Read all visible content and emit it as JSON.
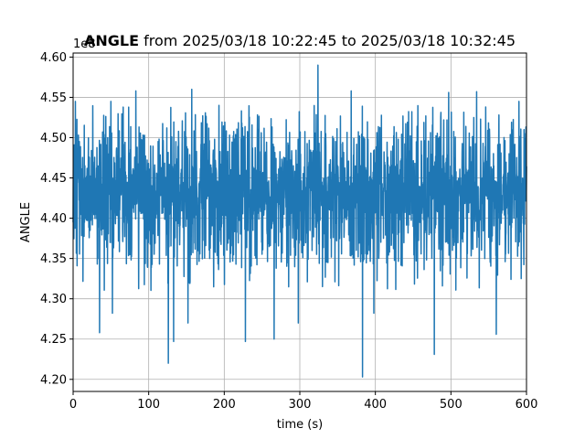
{
  "chart_data": {
    "type": "line",
    "title_bold": "ANGLE",
    "title_rest": " from 2025/03/18 10:22:45 to 2025/03/18 10:32:45",
    "xlabel": "time (s)",
    "ylabel": "ANGLE",
    "y_offset_label": "1e8",
    "xlim": [
      0,
      600
    ],
    "ylim": [
      4.185,
      4.605
    ],
    "x_ticks": [
      0,
      100,
      200,
      300,
      400,
      500,
      600
    ],
    "x_tick_labels": [
      "0",
      "100",
      "200",
      "300",
      "400",
      "500",
      "600"
    ],
    "y_ticks": [
      4.2,
      4.25,
      4.3,
      4.35,
      4.4,
      4.45,
      4.5,
      4.55,
      4.6
    ],
    "y_tick_labels": [
      "4.20",
      "4.25",
      "4.30",
      "4.35",
      "4.40",
      "4.45",
      "4.50",
      "4.55",
      "4.60"
    ],
    "grid": true,
    "line_color": "#1f77b4",
    "series": [
      {
        "x": [
          0,
          5,
          15,
          25,
          35,
          45,
          55,
          65,
          75,
          85,
          95,
          105,
          115,
          125,
          135,
          145,
          155,
          165,
          175,
          185,
          195,
          205,
          215,
          225,
          235,
          245,
          255,
          265,
          275,
          285,
          295,
          305,
          315,
          325,
          335,
          345,
          355,
          365,
          375,
          385,
          395,
          405,
          415,
          425,
          435,
          445,
          455,
          465,
          475,
          485,
          495,
          505,
          515,
          525,
          535,
          545,
          555,
          565,
          575,
          585,
          595,
          600
        ],
        "y": [
          4.43,
          4.45,
          4.42,
          4.44,
          4.41,
          4.46,
          4.43,
          4.44,
          4.42,
          4.45,
          4.43,
          4.41,
          4.44,
          4.42,
          4.45,
          4.43,
          4.44,
          4.42,
          4.46,
          4.43,
          4.41,
          4.44,
          4.43,
          4.45,
          4.42,
          4.44,
          4.43,
          4.41,
          4.45,
          4.44,
          4.42,
          4.43,
          4.46,
          4.42,
          4.44,
          4.43,
          4.45,
          4.41,
          4.44,
          4.43,
          4.42,
          4.45,
          4.43,
          4.44,
          4.42,
          4.46,
          4.43,
          4.41,
          4.44,
          4.43,
          4.45,
          4.42,
          4.44,
          4.43,
          4.41,
          4.45,
          4.44,
          4.42,
          4.43,
          4.45,
          4.43,
          4.44
        ],
        "noise_band": [
          4.34,
          4.52
        ],
        "peaks": [
          {
            "x": 3,
            "y": 4.545
          },
          {
            "x": 50,
            "y": 4.545
          },
          {
            "x": 83,
            "y": 4.558
          },
          {
            "x": 157,
            "y": 4.56
          },
          {
            "x": 193,
            "y": 4.54
          },
          {
            "x": 324,
            "y": 4.59
          },
          {
            "x": 368,
            "y": 4.558
          },
          {
            "x": 497,
            "y": 4.556
          },
          {
            "x": 534,
            "y": 4.557
          },
          {
            "x": 590,
            "y": 4.545
          }
        ],
        "troughs": [
          {
            "x": 35,
            "y": 4.258
          },
          {
            "x": 52,
            "y": 4.282
          },
          {
            "x": 126,
            "y": 4.22
          },
          {
            "x": 133,
            "y": 4.247
          },
          {
            "x": 152,
            "y": 4.27
          },
          {
            "x": 228,
            "y": 4.247
          },
          {
            "x": 266,
            "y": 4.25
          },
          {
            "x": 298,
            "y": 4.27
          },
          {
            "x": 383,
            "y": 4.203
          },
          {
            "x": 398,
            "y": 4.282
          },
          {
            "x": 478,
            "y": 4.231
          },
          {
            "x": 560,
            "y": 4.256
          }
        ]
      }
    ]
  }
}
